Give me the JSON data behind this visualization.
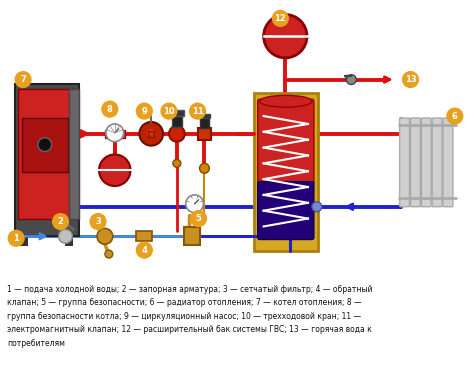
{
  "bg_color": "#ffffff",
  "legend_text": "1 — подача холодной воды; 2 — запорная арматура; 3 — сетчатый фильтр; 4 — обратный\nклапан; 5 — группа безопасности; 6 — радиатор отопления; 7 — котел отопления; 8 —\nгруппа безопасности котла; 9 — циркуляционный насос; 10 — трехходовой кран; 11 —\nэлектромагнитный клапан; 12 — расширительный бак системы ГВС; 13 — горячая вода к\nпотребителям",
  "pipe_red": "#dd1111",
  "pipe_blue": "#2222cc",
  "pipe_lblue": "#4488dd",
  "label_bg": "#e8a020",
  "boiler_body": "#cc2222",
  "boiler_dark": "#555555",
  "tank_red": "#cc2222",
  "tank_blue": "#220077",
  "tank_gold": "#d4a820",
  "exp_red": "#cc2222",
  "rad_gray": "#c8c8c8",
  "pump_red": "#bb2200",
  "valve_red": "#cc2200",
  "component_gold": "#c89020",
  "component_gold2": "#b07818"
}
